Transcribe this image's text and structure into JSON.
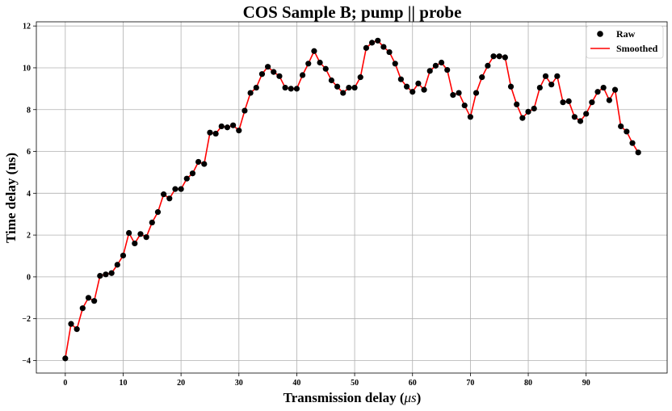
{
  "chart_data": {
    "type": "line",
    "title": "COS Sample B; pump || probe",
    "xlabel_main": "Transmission delay (",
    "xlabel_unit": "μs",
    "xlabel_close": ")",
    "ylabel": "Time delay (ns)",
    "xlim": [
      -5,
      104
    ],
    "ylim": [
      -4.6,
      12.2
    ],
    "xticks": [
      0,
      10,
      20,
      30,
      40,
      50,
      60,
      70,
      80,
      90
    ],
    "yticks": [
      -4,
      -2,
      0,
      2,
      4,
      6,
      8,
      10,
      12
    ],
    "grid": true,
    "legend_position": "top-right",
    "x": [
      0,
      1,
      2,
      3,
      4,
      5,
      6,
      7,
      8,
      9,
      10,
      11,
      12,
      13,
      14,
      15,
      16,
      17,
      18,
      19,
      20,
      21,
      22,
      23,
      24,
      25,
      26,
      27,
      28,
      29,
      30,
      31,
      32,
      33,
      34,
      35,
      36,
      37,
      38,
      39,
      40,
      41,
      42,
      43,
      44,
      45,
      46,
      47,
      48,
      49,
      50,
      51,
      52,
      53,
      54,
      55,
      56,
      57,
      58,
      59,
      60,
      61,
      62,
      63,
      64,
      65,
      66,
      67,
      68,
      69,
      70,
      71,
      72,
      73,
      74,
      75,
      76,
      77,
      78,
      79,
      80,
      81,
      82,
      83,
      84,
      85,
      86,
      87,
      88,
      89,
      90,
      91,
      92,
      93,
      94,
      95,
      96,
      97,
      98,
      99
    ],
    "series": [
      {
        "name": "Raw",
        "kind": "scatter",
        "color": "#000000",
        "values": [
          -3.9,
          -2.25,
          -2.5,
          -1.5,
          -1.0,
          -1.15,
          0.05,
          0.12,
          0.18,
          0.58,
          1.02,
          2.1,
          1.6,
          2.05,
          1.9,
          2.6,
          3.1,
          3.95,
          3.75,
          4.2,
          4.2,
          4.7,
          4.95,
          5.5,
          5.4,
          6.9,
          6.85,
          7.2,
          7.15,
          7.25,
          7.0,
          7.95,
          8.8,
          9.05,
          9.7,
          10.05,
          9.8,
          9.6,
          9.05,
          9.0,
          9.0,
          9.65,
          10.2,
          10.8,
          10.25,
          9.95,
          9.4,
          9.1,
          8.8,
          9.05,
          9.05,
          9.55,
          10.95,
          11.2,
          11.3,
          11.0,
          10.75,
          10.2,
          9.45,
          9.1,
          8.85,
          9.25,
          8.95,
          9.85,
          10.1,
          10.25,
          9.9,
          8.7,
          8.8,
          8.2,
          7.65,
          8.8,
          9.55,
          10.1,
          10.55,
          10.55,
          10.5,
          9.1,
          8.25,
          7.6,
          7.9,
          8.05,
          9.05,
          9.6,
          9.2,
          9.6,
          8.35,
          8.4,
          7.65,
          7.45,
          7.8,
          8.35,
          8.85,
          9.05,
          8.45,
          8.95,
          7.2,
          6.95,
          6.4,
          5.95
        ]
      },
      {
        "name": "Smoothed",
        "kind": "line",
        "color": "#ff0000"
      }
    ]
  }
}
